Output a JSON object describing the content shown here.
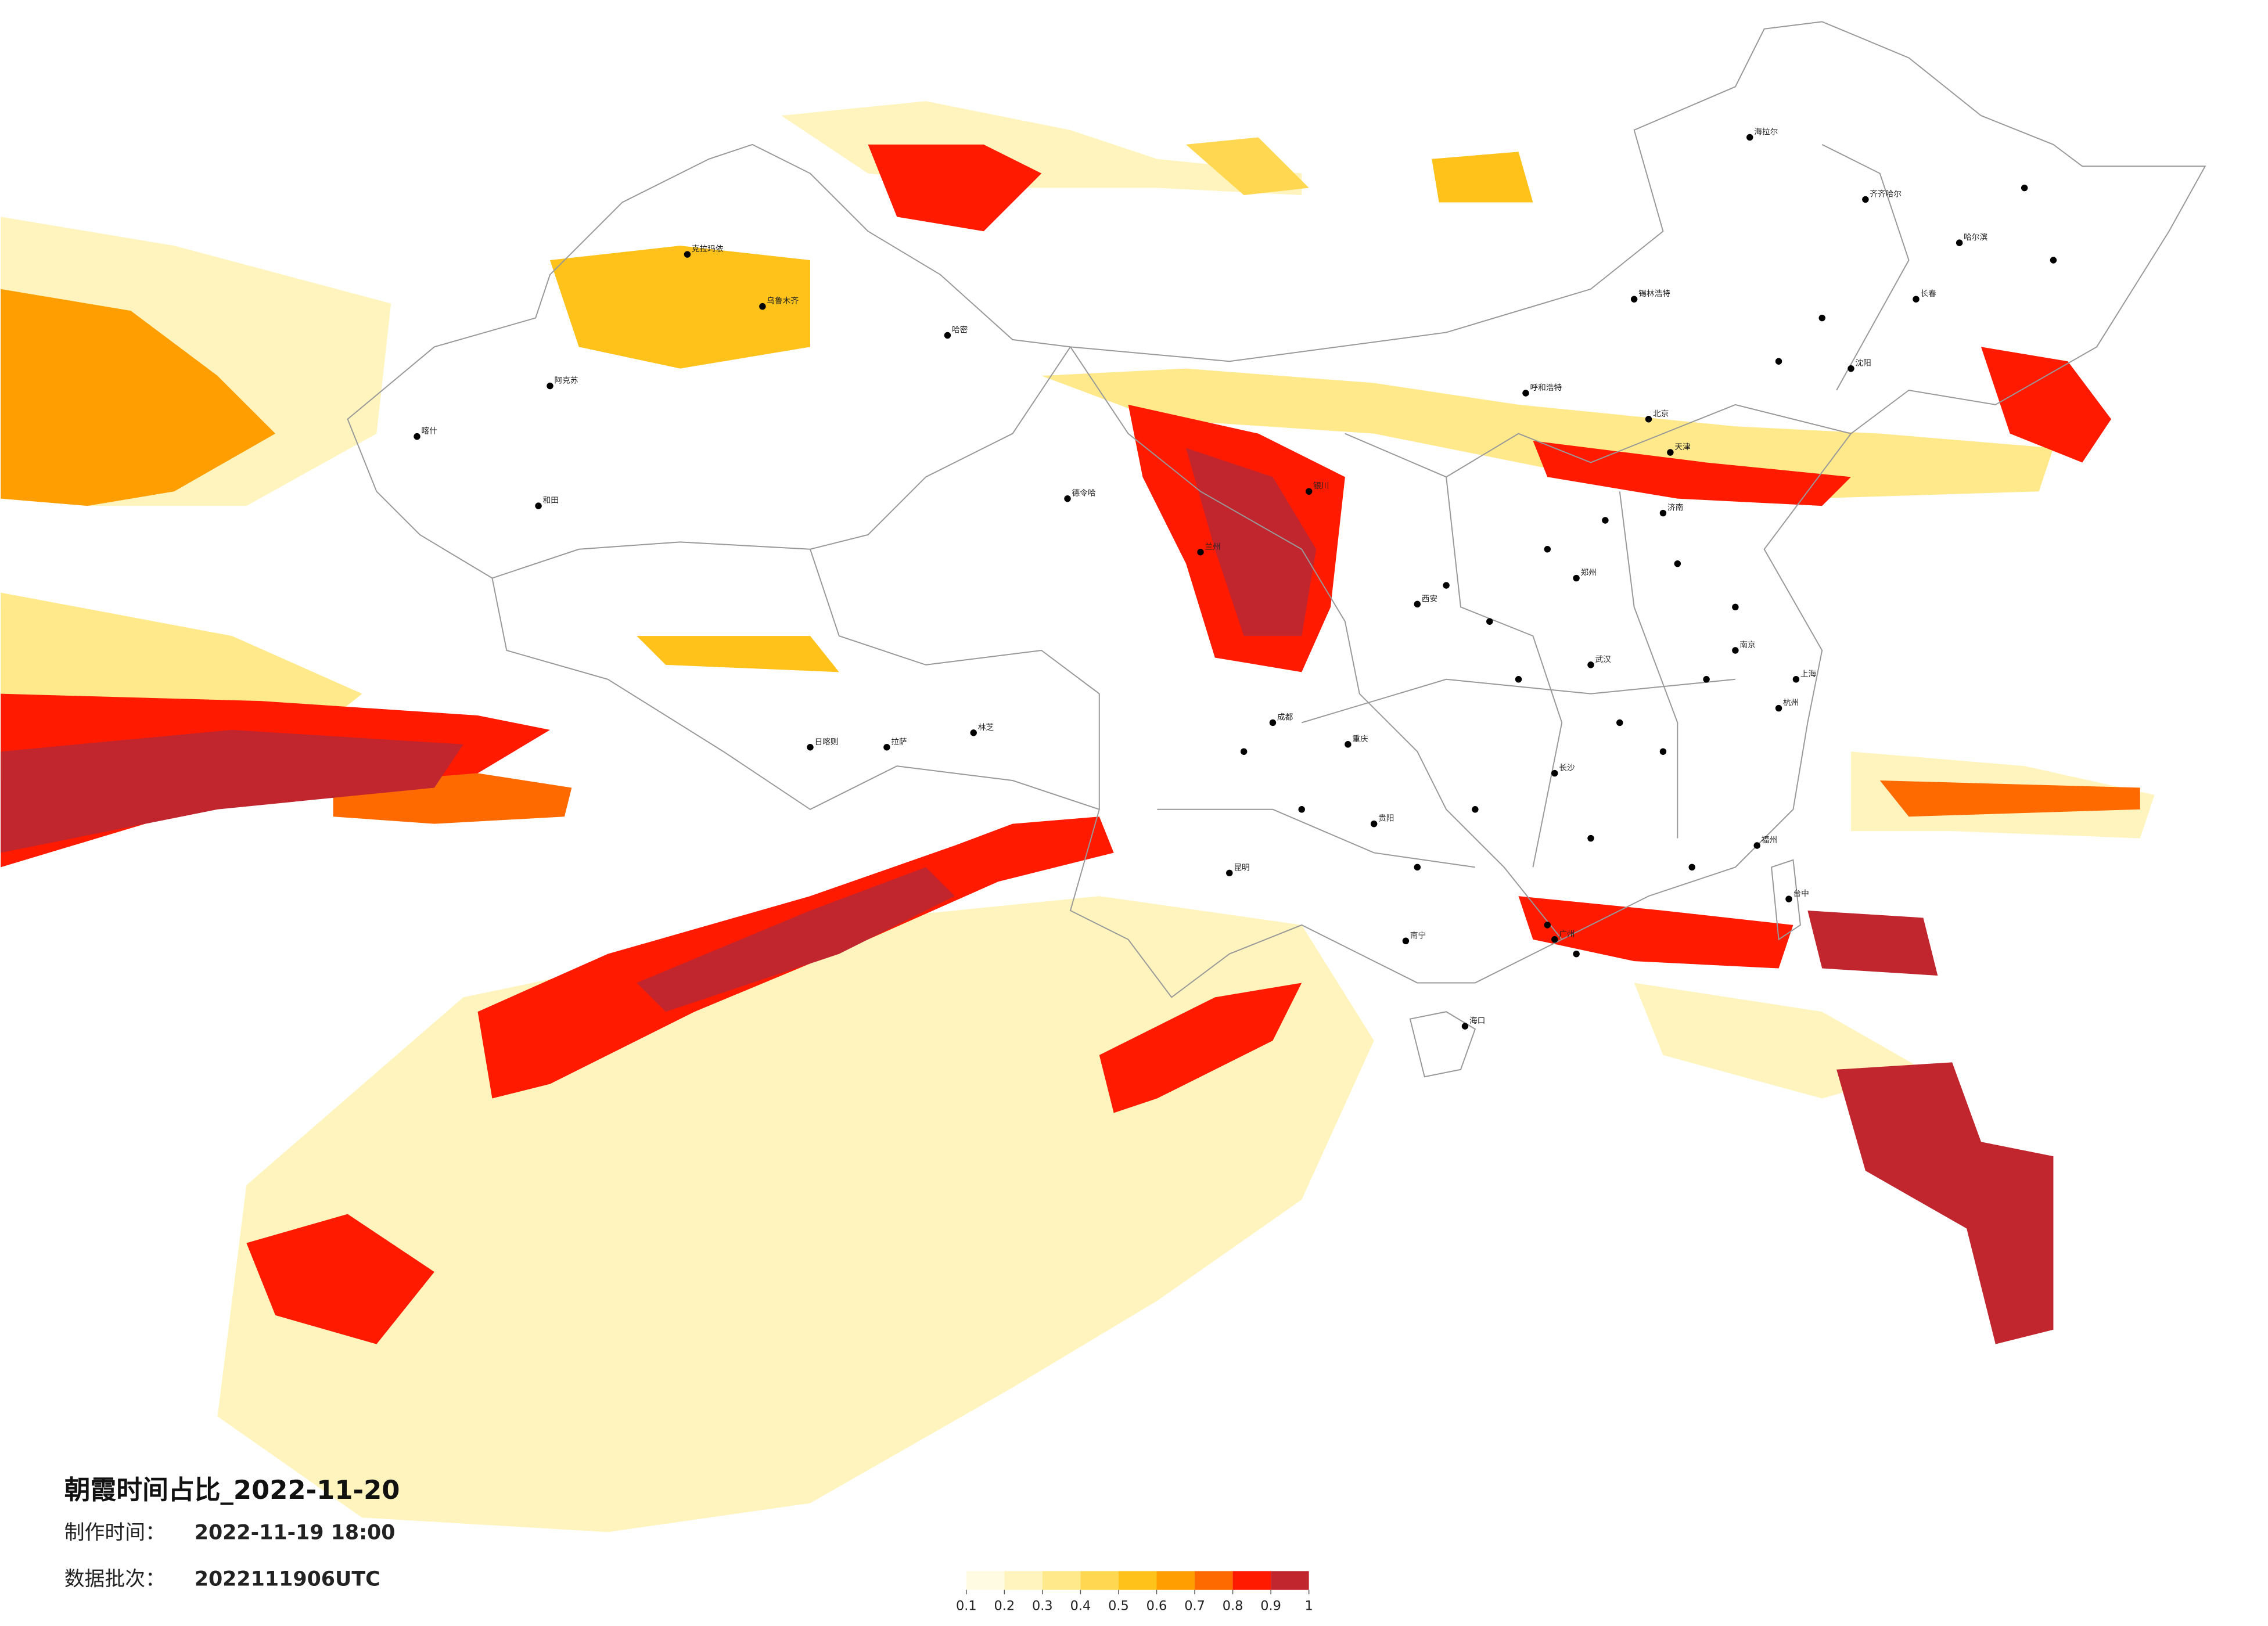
{
  "title": "朝霞时间占比_2022-11-20",
  "meta": [
    {
      "label": "制作时间：",
      "value": "2022-11-19 18:00"
    },
    {
      "label": "数据批次：",
      "value": "2022111906UTC"
    }
  ],
  "legend": {
    "colors": [
      "#fffbe3",
      "#fff4bd",
      "#ffe98a",
      "#ffd750",
      "#ffc21a",
      "#ff9e00",
      "#ff6a00",
      "#ff1a00",
      "#c1262e"
    ],
    "ticks": [
      0.1,
      0.2,
      0.3,
      0.4,
      0.5,
      0.6,
      0.7,
      0.8,
      0.9,
      1
    ]
  },
  "cities": [
    "喀什",
    "和田",
    "阿克苏",
    "克拉玛依",
    "乌鲁木齐",
    "哈密",
    "德令哈",
    "日喀则",
    "拉萨",
    "林芝",
    "兰州",
    "银川",
    "西安",
    "成都",
    "重庆",
    "昆明",
    "贵阳",
    "南宁",
    "海口",
    "广州",
    "长沙",
    "武汉",
    "郑州",
    "济南",
    "北京",
    "天津",
    "呼和浩特",
    "南京",
    "杭州",
    "上海",
    "福州",
    "台中",
    "沈阳",
    "长春",
    "哈尔滨",
    "海拉尔",
    "齐齐哈尔",
    "锡林浩特"
  ]
}
